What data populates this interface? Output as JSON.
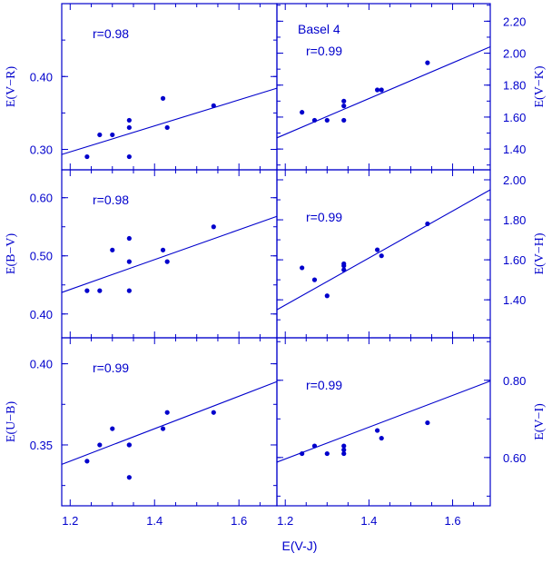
{
  "colors": {
    "ink": "#0000cc"
  },
  "figure": {
    "xlabel": "E(V-J)",
    "x_ticks": [
      "1.2",
      "1.4",
      "1.6"
    ],
    "annotation": "Basel 4"
  },
  "chart_data": [
    {
      "type": "scatter",
      "panel": "top-left",
      "ylabel": "E(V−R)",
      "r_label": "r=0.98",
      "xlim": [
        1.18,
        1.69
      ],
      "ylim": [
        0.272,
        0.5
      ],
      "y_ticks": [
        "0.30",
        "0.40"
      ],
      "y_tick_values": [
        0.3,
        0.4
      ],
      "x": [
        1.24,
        1.27,
        1.3,
        1.34,
        1.34,
        1.34,
        1.42,
        1.43,
        1.54
      ],
      "y": [
        0.29,
        0.32,
        0.32,
        0.34,
        0.33,
        0.29,
        0.37,
        0.33,
        0.36
      ],
      "fit": {
        "x": [
          1.18,
          1.69
        ],
        "y": [
          0.293,
          0.384
        ]
      }
    },
    {
      "type": "scatter",
      "panel": "top-right",
      "ylabel": "E(V−K)",
      "r_label": "r=0.99",
      "xlim": [
        1.18,
        1.69
      ],
      "ylim": [
        1.27,
        2.31
      ],
      "y_ticks": [
        "1.40",
        "1.60",
        "1.80",
        "2.00",
        "2.20"
      ],
      "y_tick_values": [
        1.4,
        1.6,
        1.8,
        2.0,
        2.2
      ],
      "x": [
        1.24,
        1.27,
        1.3,
        1.34,
        1.34,
        1.34,
        1.42,
        1.43,
        1.54
      ],
      "y": [
        1.63,
        1.58,
        1.58,
        1.7,
        1.67,
        1.58,
        1.77,
        1.77,
        1.94
      ],
      "fit": {
        "x": [
          1.18,
          1.69
        ],
        "y": [
          1.47,
          2.04
        ]
      }
    },
    {
      "type": "scatter",
      "panel": "middle-left",
      "ylabel": "E(B−V)",
      "r_label": "r=0.98",
      "xlim": [
        1.18,
        1.69
      ],
      "ylim": [
        0.359,
        0.648
      ],
      "y_ticks": [
        "0.40",
        "0.50",
        "0.60"
      ],
      "y_tick_values": [
        0.4,
        0.5,
        0.6
      ],
      "x": [
        1.24,
        1.27,
        1.3,
        1.34,
        1.34,
        1.34,
        1.42,
        1.43,
        1.54
      ],
      "y": [
        0.44,
        0.44,
        0.51,
        0.53,
        0.49,
        0.44,
        0.51,
        0.49,
        0.55
      ],
      "fit": {
        "x": [
          1.18,
          1.69
        ],
        "y": [
          0.437,
          0.568
        ]
      }
    },
    {
      "type": "scatter",
      "panel": "middle-right",
      "ylabel": "E(V−H)",
      "r_label": "r=0.99",
      "xlim": [
        1.18,
        1.69
      ],
      "ylim": [
        1.21,
        2.05
      ],
      "y_ticks": [
        "1.40",
        "1.60",
        "1.80",
        "2.00"
      ],
      "y_tick_values": [
        1.4,
        1.6,
        1.8,
        2.0
      ],
      "x": [
        1.24,
        1.27,
        1.3,
        1.34,
        1.34,
        1.34,
        1.42,
        1.43,
        1.54
      ],
      "y": [
        1.56,
        1.5,
        1.42,
        1.58,
        1.57,
        1.55,
        1.65,
        1.62,
        1.78
      ],
      "fit": {
        "x": [
          1.18,
          1.69
        ],
        "y": [
          1.35,
          1.95
        ]
      }
    },
    {
      "type": "scatter",
      "panel": "bottom-left",
      "ylabel": "E(U−B)",
      "r_label": "r=0.99",
      "xlim": [
        1.18,
        1.69
      ],
      "ylim": [
        0.3125,
        0.416
      ],
      "y_ticks": [
        "0.35",
        "0.40"
      ],
      "y_tick_values": [
        0.35,
        0.4
      ],
      "x": [
        1.24,
        1.27,
        1.3,
        1.34,
        1.34,
        1.34,
        1.42,
        1.43,
        1.54
      ],
      "y": [
        0.34,
        0.35,
        0.36,
        0.35,
        0.35,
        0.33,
        0.36,
        0.37,
        0.37
      ],
      "fit": {
        "x": [
          1.18,
          1.69
        ],
        "y": [
          0.338,
          0.389
        ]
      }
    },
    {
      "type": "scatter",
      "panel": "bottom-right",
      "ylabel": "E(V−I)",
      "r_label": "r=0.99",
      "xlim": [
        1.18,
        1.69
      ],
      "ylim": [
        0.475,
        0.91
      ],
      "y_ticks": [
        "0.60",
        "0.80"
      ],
      "y_tick_values": [
        0.6,
        0.8
      ],
      "x": [
        1.24,
        1.27,
        1.3,
        1.34,
        1.34,
        1.34,
        1.42,
        1.43,
        1.54
      ],
      "y": [
        0.61,
        0.63,
        0.61,
        0.63,
        0.62,
        0.61,
        0.67,
        0.65,
        0.69
      ],
      "fit": {
        "x": [
          1.18,
          1.69
        ],
        "y": [
          0.588,
          0.798
        ]
      }
    }
  ]
}
